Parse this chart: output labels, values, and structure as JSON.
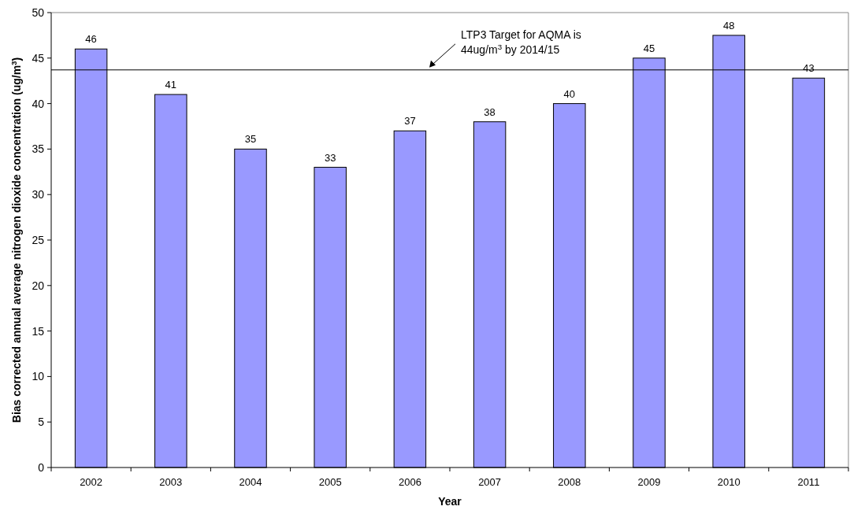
{
  "chart_data": {
    "type": "bar",
    "xlabel": "Year",
    "ylabel": "Bias corrected annual average nitrogen dioxide concentration  (ug/m$^{3}$)",
    "categories": [
      "2002",
      "2003",
      "2004",
      "2005",
      "2006",
      "2007",
      "2008",
      "2009",
      "2010",
      "2011"
    ],
    "values": [
      46,
      41,
      35,
      33,
      37,
      38,
      40,
      45,
      47.5,
      42.8
    ],
    "value_labels": [
      "46",
      "41",
      "35",
      "33",
      "37",
      "38",
      "40",
      "45",
      "48",
      "43"
    ],
    "color": "#9999ff",
    "ylim": [
      0,
      50
    ],
    "yticks": [
      0,
      5,
      10,
      15,
      20,
      25,
      30,
      35,
      40,
      45,
      50
    ],
    "ref_lines": [
      {
        "axis": "y",
        "value": 43.7,
        "label": "LTP3 Target for AQMA is 44ug/m$^{3}$ by 2014/15",
        "color": "#000000"
      }
    ],
    "grid": false
  }
}
